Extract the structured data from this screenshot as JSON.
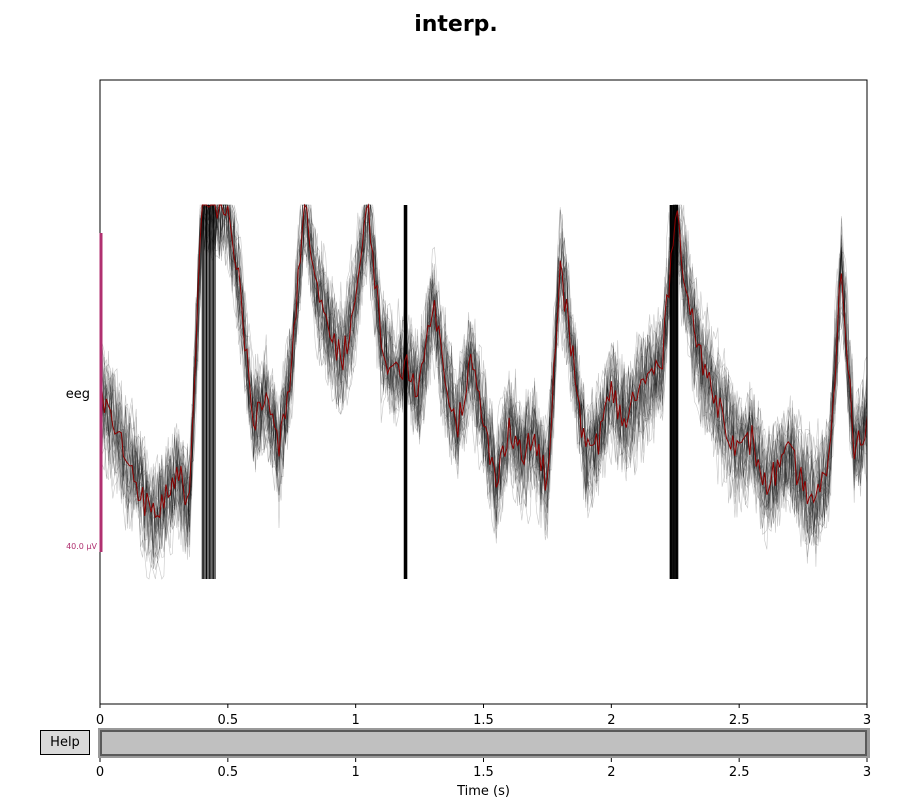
{
  "title": "interp.",
  "help_button_label": "Help",
  "colors": {
    "trace": "#000000",
    "highlight_trace": "#8b0000",
    "scale_bar": "#b03070",
    "scrollbar_fill": "#c0c0c0",
    "help_bg": "#d9d9d9"
  },
  "chart_data": {
    "type": "line",
    "ylabel_channel": "eeg",
    "scale_bar_label": "40.0 µV",
    "xlim": [
      0,
      3
    ],
    "x_ticks": [
      "0",
      "0.5",
      "1",
      "1.5",
      "2",
      "2.5",
      "3"
    ],
    "scrollbar_ticks": [
      "0",
      "0.5",
      "1",
      "1.5",
      "2",
      "2.5",
      "3"
    ],
    "xlabel": "Time (s)",
    "scrollbar_range": [
      0,
      3
    ],
    "clipped_intervals": [
      [
        0.4,
        0.45
      ],
      [
        1.19,
        1.2
      ],
      [
        2.23,
        2.26
      ]
    ],
    "highlight_series_x": [
      0,
      0.05,
      0.1,
      0.15,
      0.2,
      0.25,
      0.3,
      0.35,
      0.4,
      0.45,
      0.5,
      0.55,
      0.6,
      0.65,
      0.7,
      0.75,
      0.8,
      0.85,
      0.9,
      0.95,
      1.0,
      1.05,
      1.1,
      1.15,
      1.2,
      1.25,
      1.3,
      1.35,
      1.4,
      1.45,
      1.5,
      1.55,
      1.6,
      1.65,
      1.7,
      1.75,
      1.8,
      1.85,
      1.9,
      1.95,
      2.0,
      2.05,
      2.1,
      2.15,
      2.2,
      2.25,
      2.3,
      2.35,
      2.4,
      2.45,
      2.5,
      2.55,
      2.6,
      2.65,
      2.7,
      2.75,
      2.8,
      2.85,
      2.9,
      2.95,
      3.0
    ],
    "highlight_series_y": [
      0,
      -10,
      -20,
      -30,
      -40,
      -35,
      -25,
      -35,
      60,
      60,
      60,
      30,
      -10,
      0,
      -20,
      10,
      60,
      30,
      20,
      10,
      30,
      60,
      15,
      5,
      10,
      0,
      30,
      5,
      -10,
      10,
      -10,
      -30,
      -10,
      -20,
      -15,
      -30,
      40,
      10,
      -20,
      -15,
      0,
      -10,
      0,
      5,
      10,
      60,
      30,
      10,
      0,
      -10,
      -20,
      -15,
      -30,
      -25,
      -20,
      -30,
      -35,
      -25,
      40,
      -20,
      -10
    ]
  }
}
